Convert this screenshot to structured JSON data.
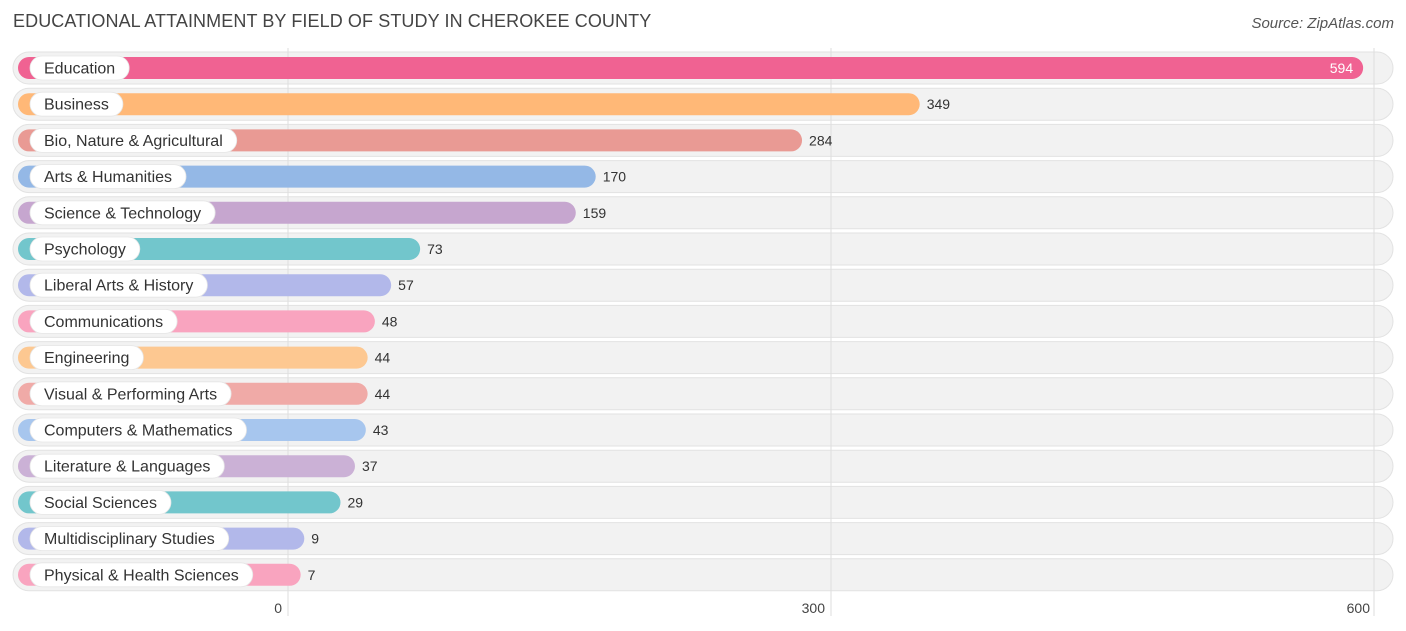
{
  "title": "EDUCATIONAL ATTAINMENT BY FIELD OF STUDY IN CHEROKEE COUNTY",
  "source": "Source: ZipAtlas.com",
  "chart_data": {
    "type": "bar",
    "orientation": "horizontal",
    "categories": [
      "Education",
      "Business",
      "Bio, Nature & Agricultural",
      "Arts & Humanities",
      "Science & Technology",
      "Psychology",
      "Liberal Arts & History",
      "Communications",
      "Engineering",
      "Visual & Performing Arts",
      "Computers & Mathematics",
      "Literature & Languages",
      "Social Sciences",
      "Multidisciplinary Studies",
      "Physical & Health Sciences"
    ],
    "values": [
      594,
      349,
      284,
      170,
      159,
      73,
      57,
      48,
      44,
      44,
      43,
      37,
      29,
      9,
      7
    ],
    "colors": [
      "#f06292",
      "#ffb877",
      "#e99a94",
      "#94b8e6",
      "#c6a6cf",
      "#72c6cc",
      "#b2b8ea",
      "#f9a4bf",
      "#fdc891",
      "#f0aaa7",
      "#a7c6ee",
      "#cbb1d6",
      "#72c6cc",
      "#b2b8ea",
      "#f9a4bf"
    ],
    "xticks": [
      0,
      300,
      600
    ],
    "xlim": [
      0,
      600
    ],
    "grid": true
  }
}
